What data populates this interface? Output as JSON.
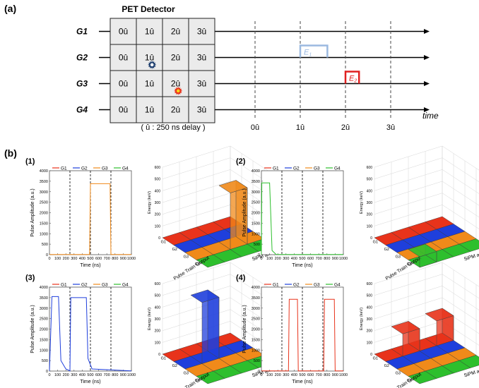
{
  "panel_a": {
    "label": "(a)",
    "title": "PET Detector",
    "rows": [
      "G1",
      "G2",
      "G3",
      "G4"
    ],
    "cells": [
      "0û",
      "1û",
      "2û",
      "3û"
    ],
    "note": "( û : 250 ns delay )",
    "time_ticks": [
      "0û",
      "1û",
      "2û",
      "3û"
    ],
    "time_label": "time",
    "pulses": [
      {
        "row": "G2",
        "label": "E",
        "sub": "1",
        "color": "#9bb9e0",
        "start": 1.0,
        "end": 1.6
      },
      {
        "row": "G3",
        "label": "E",
        "sub": "2",
        "color": "#e02020",
        "start": 2.0,
        "end": 2.3
      }
    ],
    "markers": [
      {
        "row": "G2",
        "cell": 1,
        "color": "#1f3f6f"
      },
      {
        "row": "G3",
        "cell": 2,
        "color": "#e8331b"
      }
    ]
  },
  "panel_b": {
    "label": "(b)"
  },
  "colors": {
    "G1": "#e8331b",
    "G2": "#1f3fdc",
    "G3": "#f08a1a",
    "G4": "#2dbf2d"
  },
  "chart_data": [
    {
      "type": "line",
      "panel": "(1)",
      "xlabel": "Time (ns)",
      "ylabel": "Pulse Amplitude (a.u.)",
      "xlim": [
        0,
        1000
      ],
      "ylim": [
        0,
        4000
      ],
      "xticks": [
        0,
        100,
        200,
        300,
        400,
        500,
        600,
        700,
        800,
        900,
        1000
      ],
      "yticks": [
        0,
        500,
        1000,
        1500,
        2000,
        2500,
        3000,
        3500,
        4000
      ],
      "legend": [
        "G1",
        "G2",
        "G3",
        "G4"
      ],
      "dashed_x": [
        250,
        500,
        750
      ],
      "series": [
        {
          "name": "G3",
          "points": [
            [
              0,
              10
            ],
            [
              490,
              10
            ],
            [
              500,
              3380
            ],
            [
              740,
              3380
            ],
            [
              750,
              10
            ],
            [
              1000,
              10
            ]
          ]
        }
      ],
      "bar3d": {
        "zlabel": "Energy (keV)",
        "ylabel": "Pulse Train Output",
        "xlabel": "SiPM array",
        "rows": [
          "G1",
          "G2",
          "G3",
          "G4"
        ],
        "zticks": [
          0,
          100,
          200,
          300,
          400,
          500,
          600
        ],
        "bars": [
          {
            "row": "G3",
            "col": 2,
            "value": 480
          }
        ]
      }
    },
    {
      "type": "line",
      "panel": "(2)",
      "xlabel": "Time (ns)",
      "ylabel": "Pulse Amplitude (a.u.)",
      "xlim": [
        0,
        1000
      ],
      "ylim": [
        0,
        4000
      ],
      "xticks": [
        0,
        100,
        200,
        300,
        400,
        500,
        600,
        700,
        800,
        900,
        1000
      ],
      "yticks": [
        0,
        500,
        1000,
        1500,
        2000,
        2500,
        3000,
        3500,
        4000
      ],
      "legend": [
        "G1",
        "G2",
        "G3",
        "G4"
      ],
      "dashed_x": [
        250,
        500,
        750
      ],
      "series": [
        {
          "name": "G4",
          "points": [
            [
              0,
              10
            ],
            [
              5,
              3420
            ],
            [
              100,
              3420
            ],
            [
              130,
              200
            ],
            [
              180,
              10
            ],
            [
              1000,
              10
            ]
          ]
        }
      ],
      "bar3d": {
        "zlabel": "Energy (keV)",
        "ylabel": "Pulse Train Output",
        "xlabel": "SiPM array",
        "rows": [
          "G1",
          "G2",
          "G3",
          "G4"
        ],
        "zticks": [
          0,
          100,
          200,
          300,
          400,
          500,
          600
        ],
        "bars": [
          {
            "row": "G4",
            "col": 0,
            "value": 90
          }
        ]
      }
    },
    {
      "type": "line",
      "panel": "(3)",
      "xlabel": "Time (ns)",
      "ylabel": "Pulse Amplitude (a.u.)",
      "xlim": [
        0,
        1000
      ],
      "ylim": [
        0,
        4000
      ],
      "xticks": [
        0,
        100,
        200,
        300,
        400,
        500,
        600,
        700,
        800,
        900,
        1000
      ],
      "yticks": [
        0,
        500,
        1000,
        1500,
        2000,
        2500,
        3000,
        3500,
        4000
      ],
      "legend": [
        "G1",
        "G2",
        "G3",
        "G4"
      ],
      "dashed_x": [
        250,
        500,
        750
      ],
      "series": [
        {
          "name": "G2",
          "points": [
            [
              0,
              10
            ],
            [
              30,
              3550
            ],
            [
              110,
              3550
            ],
            [
              140,
              500
            ],
            [
              200,
              100
            ],
            [
              250,
              10
            ],
            [
              260,
              3500
            ],
            [
              450,
              3500
            ],
            [
              470,
              600
            ],
            [
              520,
              100
            ],
            [
              1000,
              10
            ]
          ]
        }
      ],
      "bar3d": {
        "zlabel": "Energy (keV)",
        "ylabel": "Pulse Train Output",
        "xlabel": "SiPM array",
        "rows": [
          "G1",
          "G2",
          "G3",
          "G4"
        ],
        "zticks": [
          0,
          100,
          200,
          300,
          400,
          500,
          600
        ],
        "bars": [
          {
            "row": "G2",
            "col": 1,
            "value": 520
          }
        ]
      }
    },
    {
      "type": "line",
      "panel": "(4)",
      "xlabel": "Time (ns)",
      "ylabel": "Pulse Amplitude (a.u.)",
      "xlim": [
        0,
        1000
      ],
      "ylim": [
        0,
        4000
      ],
      "xticks": [
        0,
        100,
        200,
        300,
        400,
        500,
        600,
        700,
        800,
        900,
        1000
      ],
      "yticks": [
        0,
        500,
        1000,
        1500,
        2000,
        2500,
        3000,
        3500,
        4000
      ],
      "legend": [
        "G1",
        "G2",
        "G3",
        "G4"
      ],
      "dashed_x": [
        250,
        500,
        750
      ],
      "series": [
        {
          "name": "G1",
          "points": [
            [
              0,
              10
            ],
            [
              330,
              10
            ],
            [
              340,
              3420
            ],
            [
              440,
              3420
            ],
            [
              450,
              10
            ],
            [
              760,
              10
            ],
            [
              770,
              3420
            ],
            [
              890,
              3420
            ],
            [
              900,
              10
            ],
            [
              1000,
              10
            ]
          ]
        }
      ],
      "bar3d": {
        "zlabel": "Energy (keV)",
        "ylabel": "Pulse Train Output",
        "xlabel": "SiPM array",
        "rows": [
          "G1",
          "G2",
          "G3",
          "G4"
        ],
        "zticks": [
          0,
          100,
          200,
          300,
          400,
          500,
          600
        ],
        "bars": [
          {
            "row": "G1",
            "col": 1,
            "value": 190
          },
          {
            "row": "G1",
            "col": 3,
            "value": 210
          }
        ]
      }
    }
  ]
}
